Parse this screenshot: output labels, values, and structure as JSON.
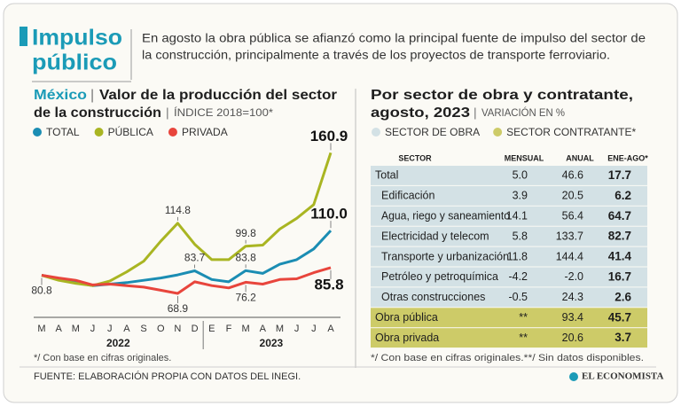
{
  "header": {
    "title_lines": [
      "Impulso",
      "público"
    ],
    "description_lines": [
      "En agosto la obra pública se afianzó como la principal fuente de impulso del sector de",
      "la construcción, principalmente a través de los proyectos de transporte ferroviario."
    ]
  },
  "chart_data": {
    "type": "line",
    "title_prefix": "México",
    "title_lines": [
      "Valor de la producción del sector",
      "de la construcción"
    ],
    "subtitle": "ÍNDICE 2018=100*",
    "categories": [
      "M",
      "A",
      "M",
      "J",
      "J",
      "A",
      "S",
      "O",
      "N",
      "D",
      "E",
      "F",
      "M",
      "A",
      "M",
      "J",
      "J",
      "A"
    ],
    "years": [
      "2022",
      "2023"
    ],
    "ylim": [
      55,
      175
    ],
    "series": [
      {
        "name": "TOTAL",
        "color": "#1b8db3",
        "values": [
          80.8,
          78.5,
          76.0,
          74.0,
          75.0,
          76.0,
          77.5,
          79.0,
          81.0,
          83.7,
          78.0,
          76.5,
          83.8,
          82.0,
          88.0,
          91.0,
          98.0,
          110.0
        ],
        "value_labels": [
          "80.8",
          null,
          null,
          null,
          null,
          null,
          null,
          null,
          null,
          "83.7",
          null,
          null,
          "83.8",
          null,
          null,
          null,
          null,
          "110.0"
        ]
      },
      {
        "name": "PÚBLICA",
        "color": "#a9b522",
        "values": [
          80.8,
          77.5,
          75.5,
          74.0,
          77.0,
          83.0,
          90.0,
          103.0,
          114.8,
          101.0,
          91.0,
          91.0,
          99.8,
          100.5,
          111.0,
          118.0,
          127.0,
          160.9
        ],
        "value_labels": [
          null,
          null,
          null,
          null,
          null,
          null,
          null,
          null,
          "114.8",
          null,
          null,
          null,
          "99.8",
          null,
          null,
          null,
          null,
          "160.9"
        ]
      },
      {
        "name": "PRIVADA",
        "color": "#e8453c",
        "values": [
          80.8,
          79.0,
          77.5,
          74.5,
          75.0,
          74.0,
          73.0,
          71.0,
          68.9,
          76.5,
          74.0,
          72.5,
          76.2,
          75.0,
          78.0,
          78.5,
          82.5,
          85.8
        ],
        "value_labels": [
          null,
          null,
          null,
          null,
          null,
          null,
          null,
          null,
          "68.9",
          null,
          null,
          null,
          "76.2",
          null,
          null,
          null,
          null,
          "85.8"
        ]
      }
    ],
    "note": "*/ Con base en cifras originales."
  },
  "table": {
    "title_lines": [
      "Por sector de obra y contratante,",
      "agosto, 2023"
    ],
    "subtitle": "VARIACIÓN EN %",
    "legend": [
      {
        "name": "SECTOR DE OBRA",
        "color": "#d3e1e5"
      },
      {
        "name": "SECTOR CONTRATANTE*",
        "color": "#cdcb68"
      }
    ],
    "columns": [
      "SECTOR",
      "MENSUAL",
      "ANUAL",
      "ENE-AGO*"
    ],
    "sections": [
      {
        "rows": [
          [
            "Total",
            "5.0",
            "46.6",
            "17.7"
          ],
          [
            "Edificación",
            "3.9",
            "20.5",
            "6.2"
          ],
          [
            "Agua, riego y saneamiento",
            "14.1",
            "56.4",
            "64.7"
          ],
          [
            "Electricidad y telecom",
            "5.8",
            "133.7",
            "82.7"
          ],
          [
            "Transporte y urbanización",
            "11.8",
            "144.4",
            "41.4"
          ],
          [
            "Petróleo y petroquímica",
            "-4.2",
            "-2.0",
            "16.7"
          ],
          [
            "Otras construcciones",
            "-0.5",
            "24.3",
            "2.6"
          ]
        ]
      },
      {
        "rows": [
          [
            "Obra pública",
            "**",
            "93.4",
            "45.7"
          ],
          [
            "Obra privada",
            "**",
            "20.6",
            "3.7"
          ]
        ]
      }
    ],
    "note": "*/ Con base en cifras originales.**/ Sin datos disponibles."
  },
  "footer": {
    "source": "FUENTE: ELABORACIÓN PROPIA CON DATOS DEL INEGI.",
    "brand": "EL ECONOMISTA"
  }
}
